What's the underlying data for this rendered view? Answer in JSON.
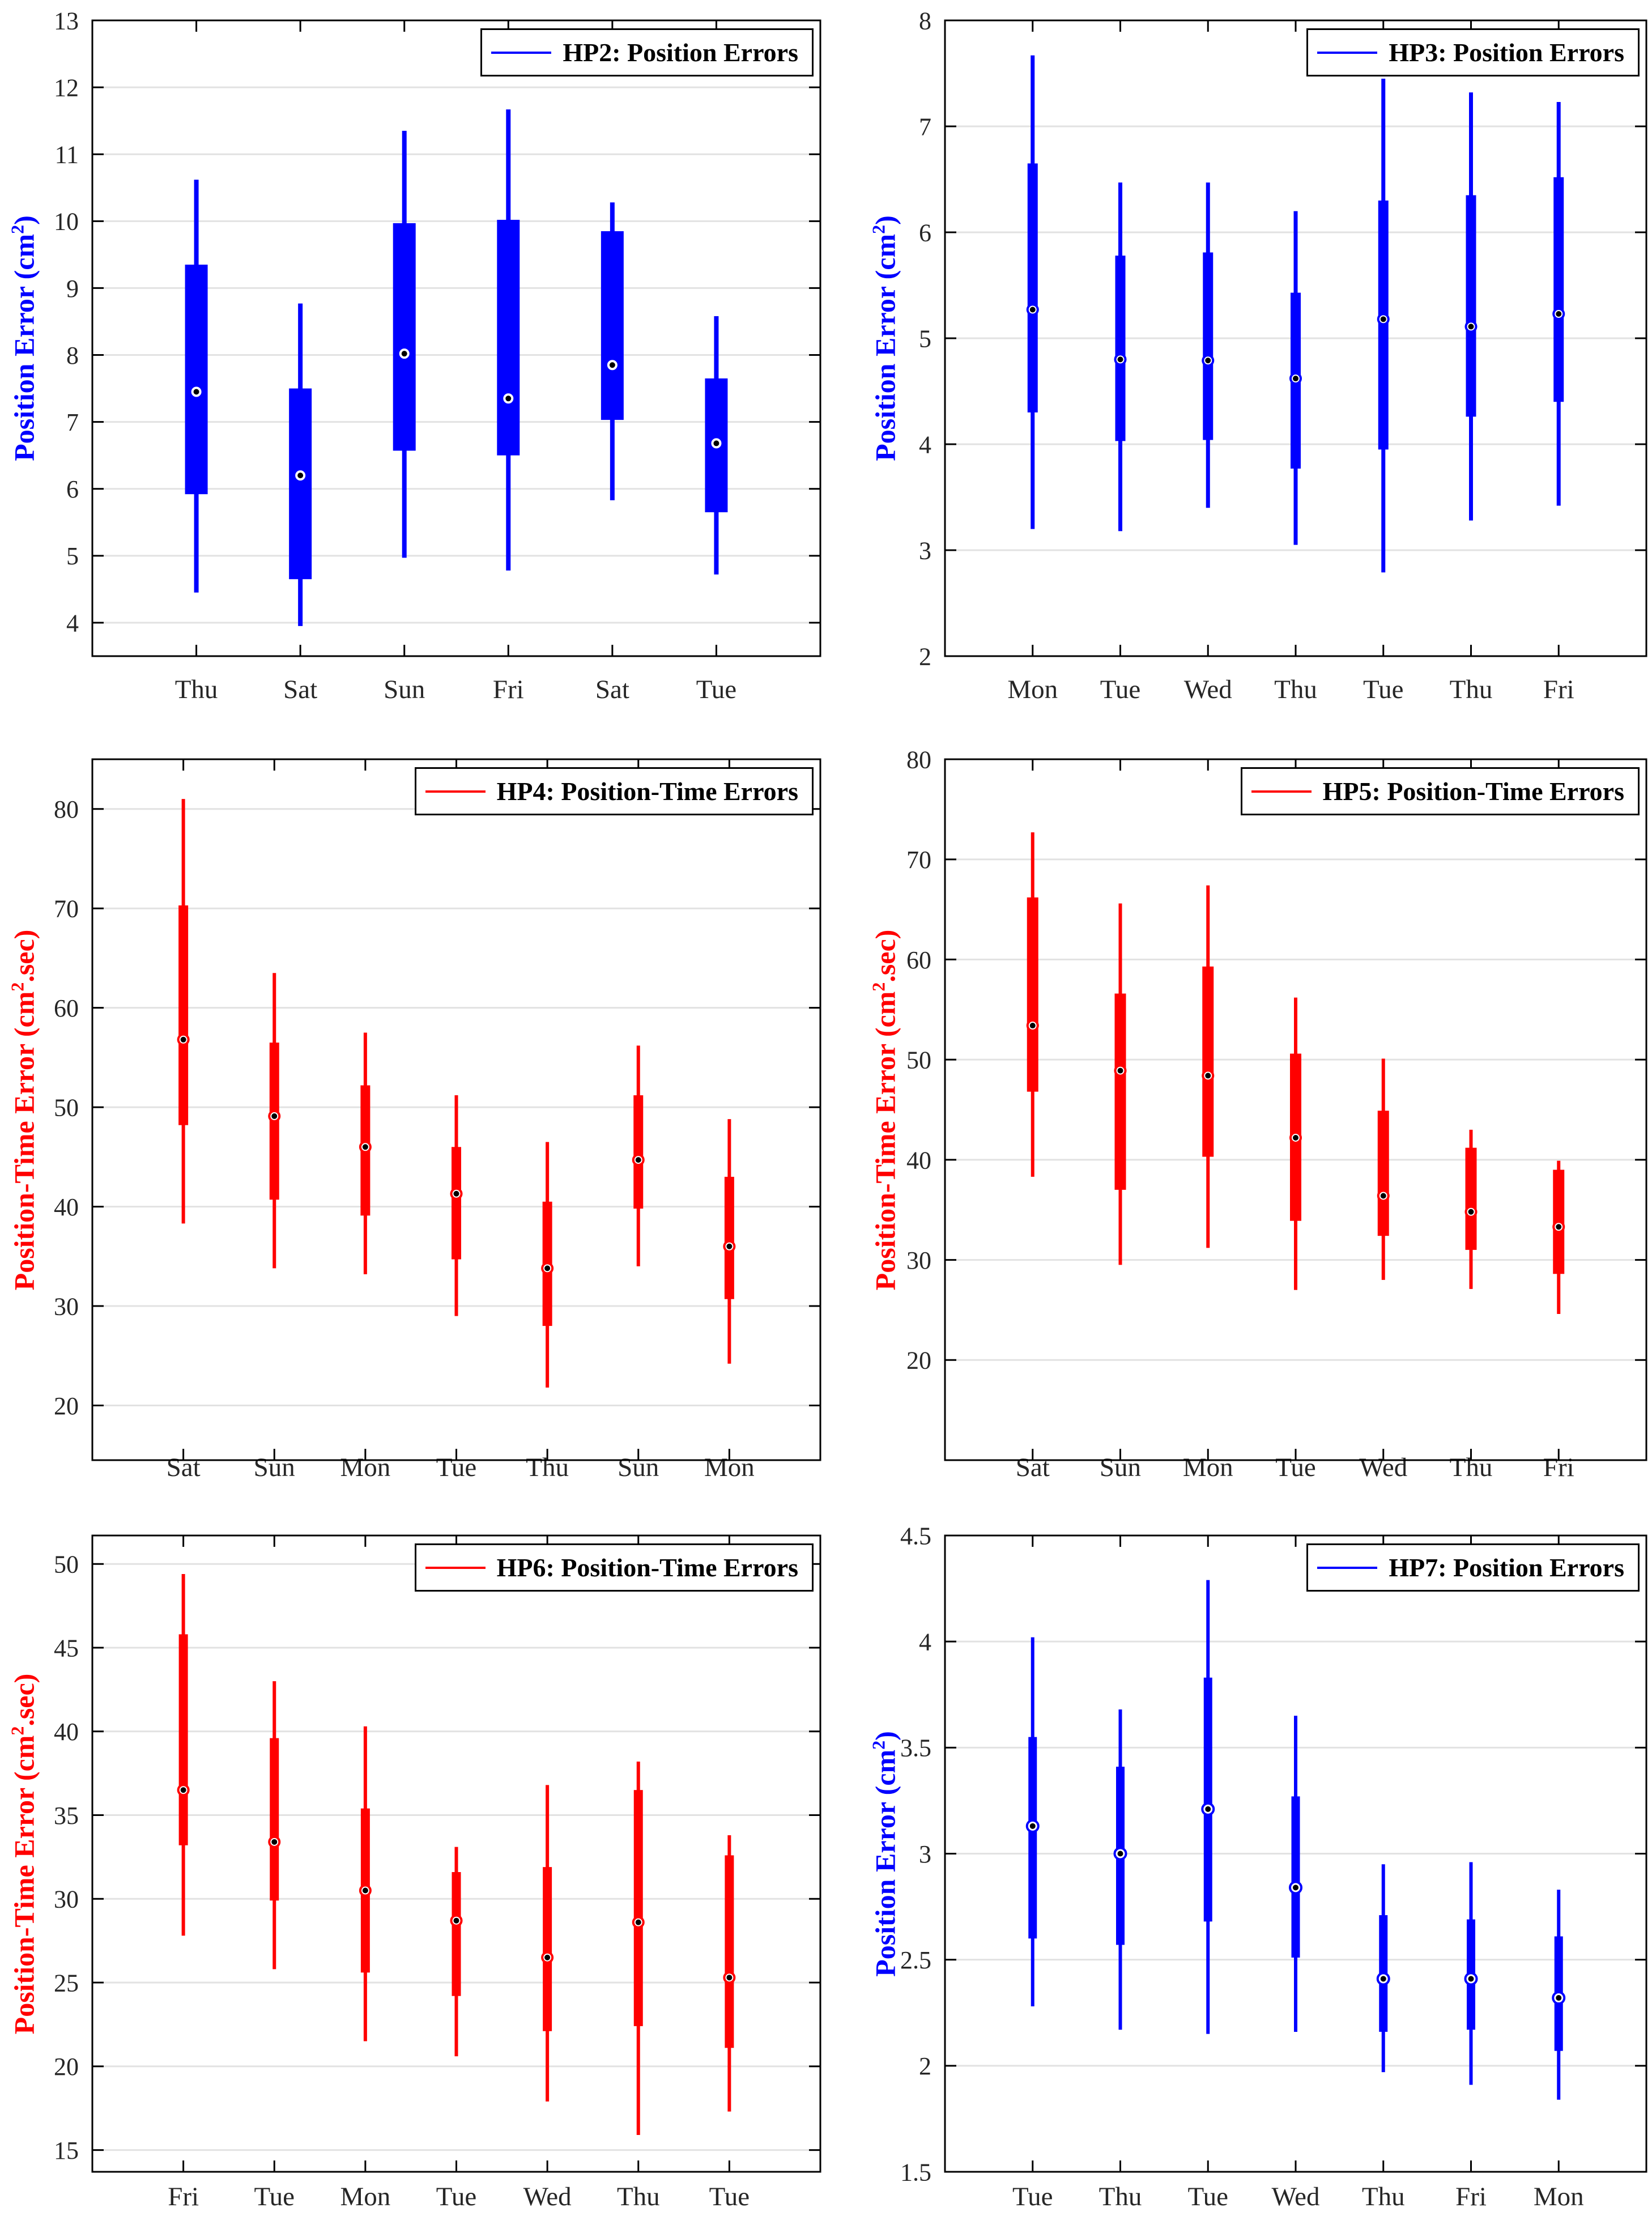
{
  "figure": {
    "background": "#ffffff",
    "grid_color": "#e2e2e2",
    "frame_color": "#000000",
    "tick_label_color": "#262626"
  },
  "chart_data": [
    {
      "type": "box",
      "id": "hp2",
      "legend_label": "HP2: Position Errors",
      "color": "#0000ff",
      "ylabel": {
        "pre": "Position Error (cm",
        "sup": "2",
        "post": ")"
      },
      "categories": [
        "Thu",
        "Sat",
        "Sun",
        "Fri",
        "Sat",
        "Tue"
      ],
      "yticks": [
        4,
        5,
        6,
        7,
        8,
        9,
        10,
        11,
        12,
        13
      ],
      "ytick_labels": [
        "4",
        "5",
        "6",
        "7",
        "8",
        "9",
        "10",
        "11",
        "12",
        "13"
      ],
      "ylim": [
        3.5,
        13
      ],
      "boxes": [
        {
          "whisker_low": 4.45,
          "q1": 5.92,
          "median": 7.45,
          "q3": 9.35,
          "whisker_high": 10.62
        },
        {
          "whisker_low": 3.95,
          "q1": 4.65,
          "median": 6.2,
          "q3": 7.5,
          "whisker_high": 8.77
        },
        {
          "whisker_low": 4.97,
          "q1": 6.57,
          "median": 8.02,
          "q3": 9.97,
          "whisker_high": 11.35
        },
        {
          "whisker_low": 4.78,
          "q1": 6.5,
          "median": 7.35,
          "q3": 10.02,
          "whisker_high": 11.67
        },
        {
          "whisker_low": 5.83,
          "q1": 7.03,
          "median": 7.85,
          "q3": 9.85,
          "whisker_high": 10.28
        },
        {
          "whisker_low": 4.72,
          "q1": 5.65,
          "median": 6.68,
          "q3": 7.65,
          "whisker_high": 8.58
        }
      ]
    },
    {
      "type": "box",
      "id": "hp3",
      "legend_label": "HP3: Position Errors",
      "color": "#0000ff",
      "ylabel": {
        "pre": "Position Error (cm",
        "sup": "2",
        "post": ")"
      },
      "categories": [
        "Mon",
        "Tue",
        "Wed",
        "Thu",
        "Tue",
        "Thu",
        "Fri"
      ],
      "yticks": [
        2,
        3,
        4,
        5,
        6,
        7,
        8
      ],
      "ytick_labels": [
        "2",
        "3",
        "4",
        "5",
        "6",
        "7",
        "8"
      ],
      "ylim": [
        2,
        8
      ],
      "boxes": [
        {
          "whisker_low": 3.2,
          "q1": 4.3,
          "median": 5.27,
          "q3": 6.65,
          "whisker_high": 7.67
        },
        {
          "whisker_low": 3.18,
          "q1": 4.03,
          "median": 4.8,
          "q3": 5.78,
          "whisker_high": 6.47
        },
        {
          "whisker_low": 3.4,
          "q1": 4.04,
          "median": 4.79,
          "q3": 5.81,
          "whisker_high": 6.47
        },
        {
          "whisker_low": 3.05,
          "q1": 3.77,
          "median": 4.62,
          "q3": 5.43,
          "whisker_high": 6.2
        },
        {
          "whisker_low": 2.79,
          "q1": 3.95,
          "median": 5.18,
          "q3": 6.3,
          "whisker_high": 7.45
        },
        {
          "whisker_low": 3.28,
          "q1": 4.26,
          "median": 5.11,
          "q3": 6.35,
          "whisker_high": 7.32
        },
        {
          "whisker_low": 3.42,
          "q1": 4.4,
          "median": 5.23,
          "q3": 6.52,
          "whisker_high": 7.23
        }
      ]
    },
    {
      "type": "box",
      "id": "hp4",
      "legend_label": "HP4: Position-Time Errors",
      "color": "#ff0000",
      "ylabel": {
        "pre": "Position-Time Error (cm",
        "sup": "2",
        "post": ".sec)"
      },
      "categories": [
        "Sat",
        "Sun",
        "Mon",
        "Tue",
        "Thu",
        "Sun",
        "Mon"
      ],
      "yticks": [
        20,
        30,
        40,
        50,
        60,
        70,
        80
      ],
      "ytick_labels": [
        "20",
        "30",
        "40",
        "50",
        "60",
        "70",
        "80"
      ],
      "ylim": [
        14.5,
        85
      ],
      "boxes": [
        {
          "whisker_low": 38.3,
          "q1": 48.2,
          "median": 56.8,
          "q3": 70.3,
          "whisker_high": 81.0
        },
        {
          "whisker_low": 33.8,
          "q1": 40.7,
          "median": 49.1,
          "q3": 56.5,
          "whisker_high": 63.5
        },
        {
          "whisker_low": 33.2,
          "q1": 39.1,
          "median": 46.0,
          "q3": 52.2,
          "whisker_high": 57.5
        },
        {
          "whisker_low": 29.0,
          "q1": 34.7,
          "median": 41.3,
          "q3": 46.0,
          "whisker_high": 51.2
        },
        {
          "whisker_low": 21.8,
          "q1": 28.0,
          "median": 33.8,
          "q3": 40.5,
          "whisker_high": 46.5
        },
        {
          "whisker_low": 34.0,
          "q1": 39.8,
          "median": 44.7,
          "q3": 51.2,
          "whisker_high": 56.2
        },
        {
          "whisker_low": 24.2,
          "q1": 30.7,
          "median": 36.0,
          "q3": 43.0,
          "whisker_high": 48.8
        }
      ]
    },
    {
      "type": "box",
      "id": "hp5",
      "legend_label": "HP5: Position-Time Errors",
      "color": "#ff0000",
      "ylabel": {
        "pre": "Position-Time Error (cm",
        "sup": "2",
        "post": ".sec)"
      },
      "categories": [
        "Sat",
        "Sun",
        "Mon",
        "Tue",
        "Wed",
        "Thu",
        "Fri"
      ],
      "yticks": [
        20,
        30,
        40,
        50,
        60,
        70,
        80
      ],
      "ytick_labels": [
        "20",
        "30",
        "40",
        "50",
        "60",
        "70",
        "80"
      ],
      "ylim": [
        10,
        80
      ],
      "boxes": [
        {
          "whisker_low": 38.3,
          "q1": 46.8,
          "median": 53.4,
          "q3": 66.2,
          "whisker_high": 72.7
        },
        {
          "whisker_low": 29.5,
          "q1": 37.0,
          "median": 48.9,
          "q3": 56.6,
          "whisker_high": 65.6
        },
        {
          "whisker_low": 31.2,
          "q1": 40.3,
          "median": 48.4,
          "q3": 59.3,
          "whisker_high": 67.4
        },
        {
          "whisker_low": 27.0,
          "q1": 33.9,
          "median": 42.2,
          "q3": 50.6,
          "whisker_high": 56.2
        },
        {
          "whisker_low": 28.0,
          "q1": 32.4,
          "median": 36.4,
          "q3": 44.9,
          "whisker_high": 50.1
        },
        {
          "whisker_low": 27.1,
          "q1": 31.0,
          "median": 34.8,
          "q3": 41.2,
          "whisker_high": 43.0
        },
        {
          "whisker_low": 24.6,
          "q1": 28.6,
          "median": 33.3,
          "q3": 39.0,
          "whisker_high": 39.9
        }
      ]
    },
    {
      "type": "box",
      "id": "hp6",
      "legend_label": "HP6: Position-Time Errors",
      "color": "#ff0000",
      "ylabel": {
        "pre": "Position-Time Error (cm",
        "sup": "2",
        "post": ".sec)"
      },
      "categories": [
        "Fri",
        "Tue",
        "Mon",
        "Tue",
        "Wed",
        "Thu",
        "Tue"
      ],
      "yticks": [
        15,
        20,
        25,
        30,
        35,
        40,
        45,
        50
      ],
      "ytick_labels": [
        "15",
        "20",
        "25",
        "30",
        "35",
        "40",
        "45",
        "50"
      ],
      "ylim": [
        13.7,
        51.7
      ],
      "boxes": [
        {
          "whisker_low": 27.8,
          "q1": 33.2,
          "median": 36.5,
          "q3": 45.8,
          "whisker_high": 49.4
        },
        {
          "whisker_low": 25.8,
          "q1": 29.9,
          "median": 33.4,
          "q3": 39.6,
          "whisker_high": 43.0
        },
        {
          "whisker_low": 21.5,
          "q1": 25.6,
          "median": 30.5,
          "q3": 35.4,
          "whisker_high": 40.3
        },
        {
          "whisker_low": 20.6,
          "q1": 24.2,
          "median": 28.7,
          "q3": 31.6,
          "whisker_high": 33.1
        },
        {
          "whisker_low": 17.9,
          "q1": 22.1,
          "median": 26.5,
          "q3": 31.9,
          "whisker_high": 36.8
        },
        {
          "whisker_low": 15.9,
          "q1": 22.4,
          "median": 28.6,
          "q3": 36.5,
          "whisker_high": 38.2
        },
        {
          "whisker_low": 17.3,
          "q1": 21.1,
          "median": 25.3,
          "q3": 32.6,
          "whisker_high": 33.8
        }
      ]
    },
    {
      "type": "box",
      "id": "hp7",
      "legend_label": "HP7: Position Errors",
      "color": "#0000ff",
      "ylabel": {
        "pre": "Position Error (cm",
        "sup": "2",
        "post": ")"
      },
      "categories": [
        "Tue",
        "Thu",
        "Tue",
        "Wed",
        "Thu",
        "Fri",
        "Mon"
      ],
      "yticks": [
        1.5,
        2,
        2.5,
        3,
        3.5,
        4,
        4.5
      ],
      "ytick_labels": [
        "1.5",
        "2",
        "2.5",
        "3",
        "3.5",
        "4",
        "4.5"
      ],
      "ylim": [
        1.5,
        4.5
      ],
      "boxes": [
        {
          "whisker_low": 2.28,
          "q1": 2.6,
          "median": 3.13,
          "q3": 3.55,
          "whisker_high": 4.02
        },
        {
          "whisker_low": 2.17,
          "q1": 2.57,
          "median": 3.0,
          "q3": 3.41,
          "whisker_high": 3.68
        },
        {
          "whisker_low": 2.15,
          "q1": 2.68,
          "median": 3.21,
          "q3": 3.83,
          "whisker_high": 4.29
        },
        {
          "whisker_low": 2.16,
          "q1": 2.51,
          "median": 2.84,
          "q3": 3.27,
          "whisker_high": 3.65
        },
        {
          "whisker_low": 1.97,
          "q1": 2.16,
          "median": 2.41,
          "q3": 2.71,
          "whisker_high": 2.95
        },
        {
          "whisker_low": 1.91,
          "q1": 2.17,
          "median": 2.41,
          "q3": 2.69,
          "whisker_high": 2.96
        },
        {
          "whisker_low": 1.84,
          "q1": 2.07,
          "median": 2.32,
          "q3": 2.61,
          "whisker_high": 2.83
        }
      ]
    }
  ]
}
